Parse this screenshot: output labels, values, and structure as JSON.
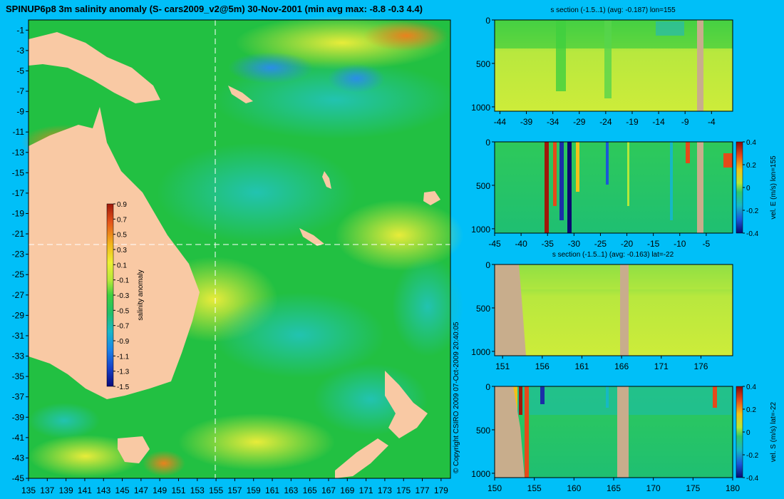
{
  "header": {
    "title": "SPINUP6p8 3m salinity anomaly (S- cars2009_v2@5m) 30-Nov-2001 (min avg max: -8.8 -0.3 4.4)",
    "copyright": "© Copyright CSIRO 2009  07-Oct-2009 20:40:05"
  },
  "colors": {
    "background": "#00bff8",
    "land": "#f9c9a4",
    "section_land": "#c8ad8c",
    "main_ocean": "#22c042",
    "section_fill": "#c8ea3c"
  },
  "chart_data": [
    {
      "id": "map",
      "type": "heatmap",
      "title": "SPINUP6p8 3m salinity anomaly (S- cars2009_v2@5m) 30-Nov-2001 (min avg max: -8.8 -0.3 4.4)",
      "x_ticks": [
        "135",
        "137",
        "139",
        "141",
        "143",
        "145",
        "147",
        "149",
        "151",
        "153",
        "155",
        "157",
        "159",
        "161",
        "163",
        "165",
        "167",
        "169",
        "171",
        "173",
        "175",
        "177",
        "179"
      ],
      "y_ticks": [
        "-1",
        "-3",
        "-5",
        "-7",
        "-9",
        "-11",
        "-13",
        "-15",
        "-17",
        "-19",
        "-21",
        "-23",
        "-25",
        "-27",
        "-29",
        "-31",
        "-33",
        "-35",
        "-37",
        "-39",
        "-41",
        "-43",
        "-45"
      ],
      "xlim": [
        135,
        180
      ],
      "ylim": [
        -45,
        0
      ],
      "section_lines": {
        "lon": 155,
        "lat": -22
      },
      "colorbar": {
        "label": "salinity anomaly",
        "ticks": [
          "0.9",
          "0.7",
          "0.5",
          "0.3",
          "0.1",
          "-0.1",
          "-0.3",
          "-0.5",
          "-0.7",
          "-0.9",
          "-1.1",
          "-1.3",
          "-1.5"
        ],
        "range": [
          -1.5,
          0.9
        ]
      }
    },
    {
      "id": "s-section-lon155",
      "type": "heatmap",
      "title": "s section (-1.5..1) (avg: -0.187) lon=155",
      "x_ticks": [
        "-44",
        "-39",
        "-34",
        "-29",
        "-24",
        "-19",
        "-14",
        "-9",
        "-4"
      ],
      "y_ticks": [
        "0",
        "500",
        "1000"
      ],
      "xlim": [
        -45,
        0
      ],
      "ylim": [
        1050,
        0
      ]
    },
    {
      "id": "vel-e-lon155",
      "type": "heatmap",
      "title": "",
      "x_ticks": [
        "-45",
        "-40",
        "-35",
        "-30",
        "-25",
        "-20",
        "-15",
        "-10",
        "-5"
      ],
      "y_ticks": [
        "0",
        "500",
        "1000"
      ],
      "xlim": [
        -45,
        0
      ],
      "ylim": [
        1050,
        0
      ],
      "colorbar": {
        "label": "vel. E (m/s) lon=155",
        "ticks": [
          "0.4",
          "0.2",
          "0",
          "-0.2",
          "-0.4"
        ],
        "range": [
          -0.4,
          0.4
        ]
      }
    },
    {
      "id": "s-section-lat-22",
      "type": "heatmap",
      "title": "s section (-1.5..1) (avg: -0.163) lat=-22",
      "x_ticks": [
        "151",
        "156",
        "161",
        "166",
        "171",
        "176"
      ],
      "y_ticks": [
        "0",
        "500",
        "1000"
      ],
      "xlim": [
        150,
        180
      ],
      "ylim": [
        1050,
        0
      ]
    },
    {
      "id": "vel-s-lat-22",
      "type": "heatmap",
      "title": "",
      "x_ticks": [
        "150",
        "155",
        "160",
        "165",
        "170",
        "175",
        "180"
      ],
      "y_ticks": [
        "0",
        "500",
        "1000"
      ],
      "xlim": [
        150,
        180
      ],
      "ylim": [
        1050,
        0
      ],
      "colorbar": {
        "label": "vel. S (m/s) lat=-22",
        "ticks": [
          "0.4",
          "0.2",
          "0",
          "-0.2",
          "-0.4"
        ],
        "range": [
          -0.4,
          0.4
        ]
      }
    }
  ]
}
